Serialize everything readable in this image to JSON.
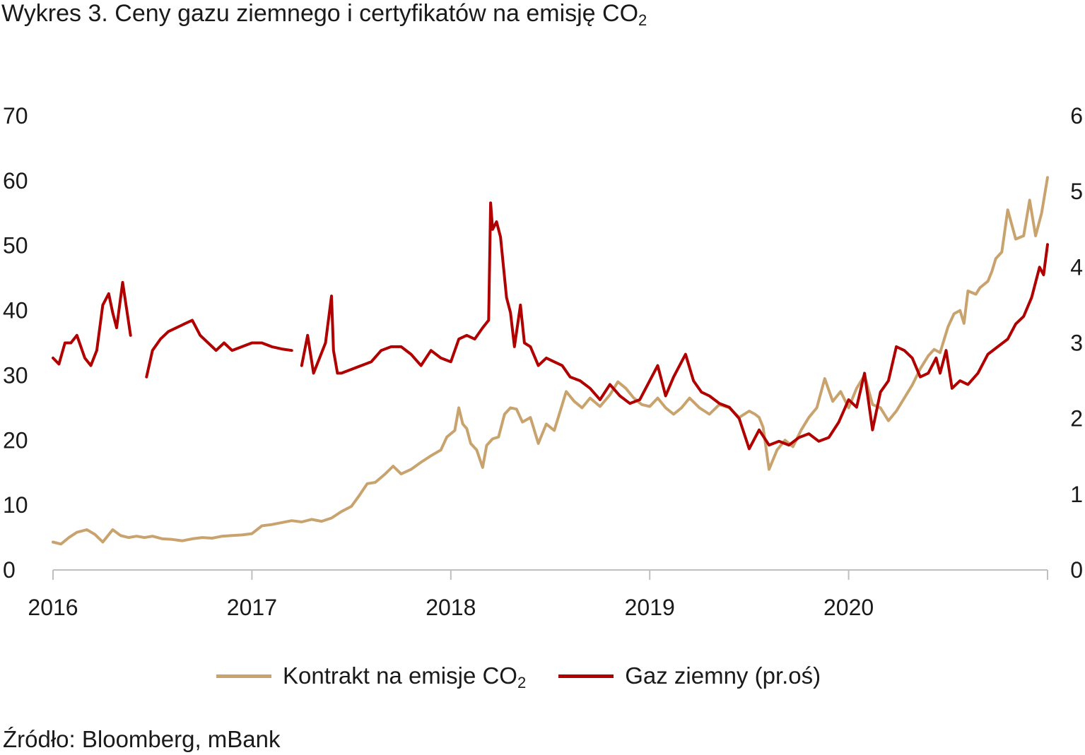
{
  "title": {
    "text": "Wykres 3. Ceny gazu ziemnego i certyfikatów na emisję CO",
    "sub": "2"
  },
  "source": "Źródło: Bloomberg, mBank",
  "chart_data": {
    "type": "line",
    "title": "Wykres 3. Ceny gazu ziemnego i certyfikatów na emisję CO2",
    "xlabel": "",
    "ylabel": "",
    "x_range": [
      2016.0,
      2021.0
    ],
    "x_ticks": [
      2016,
      2017,
      2018,
      2019,
      2020,
      2021
    ],
    "x_tick_labels": [
      "2016",
      "2017",
      "2018",
      "2019",
      "2020"
    ],
    "y_left": {
      "range": [
        0,
        70
      ],
      "ticks": [
        0,
        10,
        20,
        30,
        40,
        50,
        60,
        70
      ]
    },
    "y_right": {
      "range": [
        0,
        6
      ],
      "ticks": [
        0,
        1,
        2,
        3,
        4,
        5,
        6
      ]
    },
    "grid": false,
    "legend_position": "bottom",
    "colors": {
      "co2": "#C8A36E",
      "gas": "#B00000",
      "axis": "#BFBFBF"
    },
    "series": [
      {
        "name": "Kontrakt na emisje CO",
        "name_sub": "2",
        "axis": "left",
        "color": "#C8A36E",
        "x": [
          2016.0,
          2016.04,
          2016.08,
          2016.12,
          2016.17,
          2016.21,
          2016.25,
          2016.3,
          2016.34,
          2016.38,
          2016.42,
          2016.46,
          2016.5,
          2016.55,
          2016.6,
          2016.65,
          2016.7,
          2016.75,
          2016.8,
          2016.85,
          2016.9,
          2016.95,
          2017.0,
          2017.05,
          2017.1,
          2017.15,
          2017.2,
          2017.25,
          2017.3,
          2017.35,
          2017.4,
          2017.45,
          2017.5,
          2017.54,
          2017.58,
          2017.62,
          2017.67,
          2017.71,
          2017.75,
          2017.8,
          2017.85,
          2017.9,
          2017.95,
          2017.98,
          2018.02,
          2018.04,
          2018.06,
          2018.08,
          2018.1,
          2018.13,
          2018.16,
          2018.18,
          2018.21,
          2018.24,
          2018.27,
          2018.3,
          2018.33,
          2018.36,
          2018.4,
          2018.44,
          2018.48,
          2018.52,
          2018.55,
          2018.58,
          2018.62,
          2018.66,
          2018.7,
          2018.75,
          2018.8,
          2018.84,
          2018.88,
          2018.92,
          2018.96,
          2019.0,
          2019.04,
          2019.08,
          2019.12,
          2019.16,
          2019.2,
          2019.25,
          2019.3,
          2019.35,
          2019.4,
          2019.45,
          2019.5,
          2019.53,
          2019.55,
          2019.57,
          2019.6,
          2019.64,
          2019.68,
          2019.72,
          2019.76,
          2019.8,
          2019.84,
          2019.88,
          2019.92,
          2019.96,
          2020.0,
          2020.04,
          2020.08,
          2020.12,
          2020.16,
          2020.2,
          2020.24,
          2020.28,
          2020.32,
          2020.36,
          2020.4,
          2020.43,
          2020.46,
          2020.5,
          2020.53,
          2020.56,
          2020.58,
          2020.6,
          2020.64,
          2020.66,
          2020.68,
          2020.7,
          2020.72,
          2020.74,
          2020.77,
          2020.8,
          2020.84,
          2020.88,
          2020.91,
          2020.94,
          2020.97,
          2021.0
        ],
        "y": [
          4.3,
          4.0,
          5.0,
          5.8,
          6.2,
          5.5,
          4.3,
          6.2,
          5.3,
          5.0,
          5.2,
          5.0,
          5.2,
          4.8,
          4.7,
          4.5,
          4.8,
          5.0,
          4.9,
          5.2,
          5.3,
          5.4,
          5.6,
          6.8,
          7.0,
          7.3,
          7.6,
          7.4,
          7.8,
          7.5,
          8.0,
          9.0,
          9.8,
          11.5,
          13.3,
          13.5,
          14.8,
          16.0,
          14.8,
          15.5,
          16.6,
          17.6,
          18.5,
          20.5,
          21.5,
          25.0,
          22.5,
          21.8,
          19.5,
          18.5,
          15.8,
          19.2,
          20.2,
          20.5,
          24.0,
          25.0,
          24.8,
          22.8,
          23.5,
          19.5,
          22.5,
          21.5,
          24.5,
          27.5,
          26.0,
          25.0,
          26.5,
          25.2,
          27.0,
          29.0,
          28.0,
          26.5,
          25.5,
          25.2,
          26.5,
          25.0,
          24.0,
          25.0,
          26.5,
          25.0,
          24.0,
          25.5,
          25.0,
          23.5,
          24.5,
          24.0,
          23.5,
          22.0,
          15.5,
          18.5,
          20.0,
          19.0,
          21.5,
          23.5,
          25.0,
          29.5,
          26.0,
          27.5,
          25.0,
          28.0,
          30.0,
          25.5,
          25.0,
          23.0,
          24.5,
          26.5,
          28.5,
          31.0,
          33.0,
          34.0,
          33.5,
          37.5,
          39.5,
          40.0,
          38.0,
          43.0,
          42.5,
          43.5,
          44.0,
          44.5,
          46.0,
          48.0,
          49.0,
          55.5,
          51.0,
          51.5,
          57.0,
          51.5,
          55.0,
          60.5
        ]
      },
      {
        "name": "Gaz ziemny (pr.oś)",
        "axis": "right",
        "color": "#B00000",
        "gaps_after_index": [
          13,
          31
        ],
        "x": [
          2016.0,
          2016.03,
          2016.06,
          2016.09,
          2016.12,
          2016.16,
          2016.19,
          2016.22,
          2016.25,
          2016.28,
          2016.3,
          2016.32,
          2016.35,
          2016.39,
          2016.47,
          2016.5,
          2016.54,
          2016.58,
          2016.62,
          2016.66,
          2016.7,
          2016.74,
          2016.78,
          2016.82,
          2016.86,
          2016.9,
          2016.95,
          2017.0,
          2017.05,
          2017.1,
          2017.15,
          2017.2,
          2017.25,
          2017.28,
          2017.31,
          2017.34,
          2017.37,
          2017.4,
          2017.41,
          2017.43,
          2017.45,
          2017.5,
          2017.55,
          2017.6,
          2017.65,
          2017.7,
          2017.75,
          2017.8,
          2017.85,
          2017.9,
          2017.95,
          2018.0,
          2018.04,
          2018.08,
          2018.12,
          2018.16,
          2018.19,
          2018.2,
          2018.21,
          2018.23,
          2018.25,
          2018.28,
          2018.3,
          2018.32,
          2018.35,
          2018.37,
          2018.4,
          2018.44,
          2018.48,
          2018.52,
          2018.56,
          2018.6,
          2018.65,
          2018.7,
          2018.75,
          2018.8,
          2018.85,
          2018.9,
          2018.95,
          2019.0,
          2019.04,
          2019.08,
          2019.12,
          2019.16,
          2019.18,
          2019.22,
          2019.26,
          2019.3,
          2019.35,
          2019.4,
          2019.45,
          2019.5,
          2019.55,
          2019.6,
          2019.65,
          2019.7,
          2019.75,
          2019.8,
          2019.85,
          2019.9,
          2019.95,
          2020.0,
          2020.04,
          2020.08,
          2020.12,
          2020.16,
          2020.2,
          2020.24,
          2020.28,
          2020.32,
          2020.36,
          2020.4,
          2020.44,
          2020.46,
          2020.49,
          2020.52,
          2020.56,
          2020.6,
          2020.65,
          2020.7,
          2020.75,
          2020.8,
          2020.84,
          2020.88,
          2020.92,
          2020.96,
          2020.98,
          2021.0
        ],
        "y": [
          2.8,
          2.72,
          3.0,
          3.0,
          3.1,
          2.8,
          2.7,
          2.9,
          3.5,
          3.65,
          3.4,
          3.2,
          3.8,
          3.1,
          2.55,
          2.9,
          3.05,
          3.15,
          3.2,
          3.25,
          3.3,
          3.1,
          3.0,
          2.9,
          3.0,
          2.9,
          2.95,
          3.0,
          3.0,
          2.95,
          2.92,
          2.9,
          2.7,
          3.1,
          2.6,
          2.8,
          3.0,
          3.62,
          2.9,
          2.6,
          2.6,
          2.65,
          2.7,
          2.75,
          2.9,
          2.95,
          2.95,
          2.85,
          2.7,
          2.9,
          2.8,
          2.75,
          3.05,
          3.1,
          3.05,
          3.2,
          3.3,
          4.85,
          4.5,
          4.6,
          4.4,
          3.6,
          3.4,
          2.95,
          3.5,
          3.0,
          2.95,
          2.7,
          2.8,
          2.75,
          2.7,
          2.55,
          2.5,
          2.4,
          2.25,
          2.45,
          2.3,
          2.2,
          2.25,
          2.5,
          2.7,
          2.3,
          2.55,
          2.75,
          2.85,
          2.5,
          2.35,
          2.3,
          2.2,
          2.15,
          2.0,
          1.6,
          1.85,
          1.65,
          1.7,
          1.65,
          1.75,
          1.8,
          1.7,
          1.75,
          1.95,
          2.25,
          2.15,
          2.6,
          1.85,
          2.35,
          2.5,
          2.95,
          2.9,
          2.8,
          2.55,
          2.6,
          2.8,
          2.6,
          2.9,
          2.4,
          2.5,
          2.45,
          2.6,
          2.85,
          2.95,
          3.05,
          3.25,
          3.35,
          3.6,
          4.0,
          3.9,
          4.3
        ]
      }
    ]
  }
}
